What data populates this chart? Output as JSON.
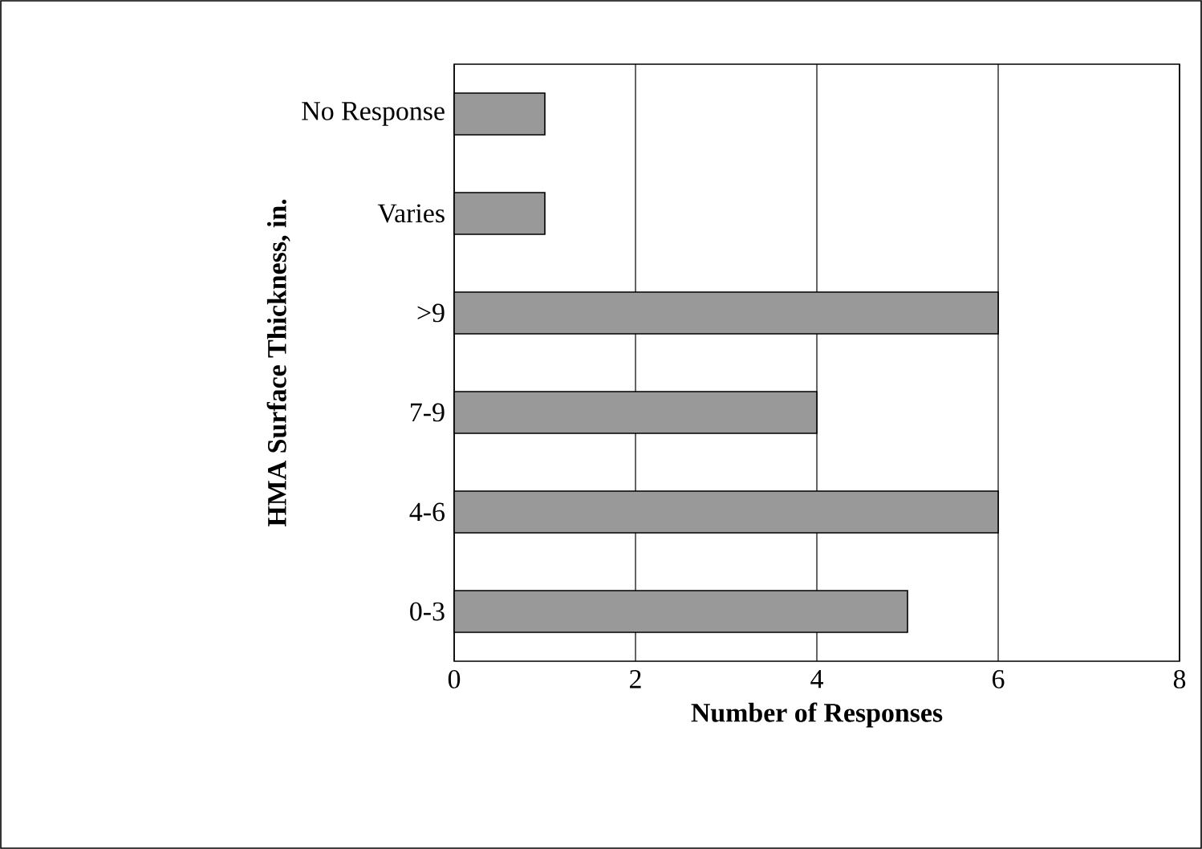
{
  "chart_data": {
    "type": "bar",
    "orientation": "horizontal",
    "categories": [
      "No Response",
      "Varies",
      ">9",
      "7-9",
      "4-6",
      "0-3"
    ],
    "values": [
      1,
      1,
      6,
      4,
      6,
      5
    ],
    "color": "#999999",
    "xlabel": "Number of Responses",
    "ylabel": "HMA Surface Thickness, in.",
    "xlim": [
      0,
      8
    ],
    "xticks": [
      0,
      2,
      4,
      6,
      8
    ],
    "grid": "x"
  }
}
